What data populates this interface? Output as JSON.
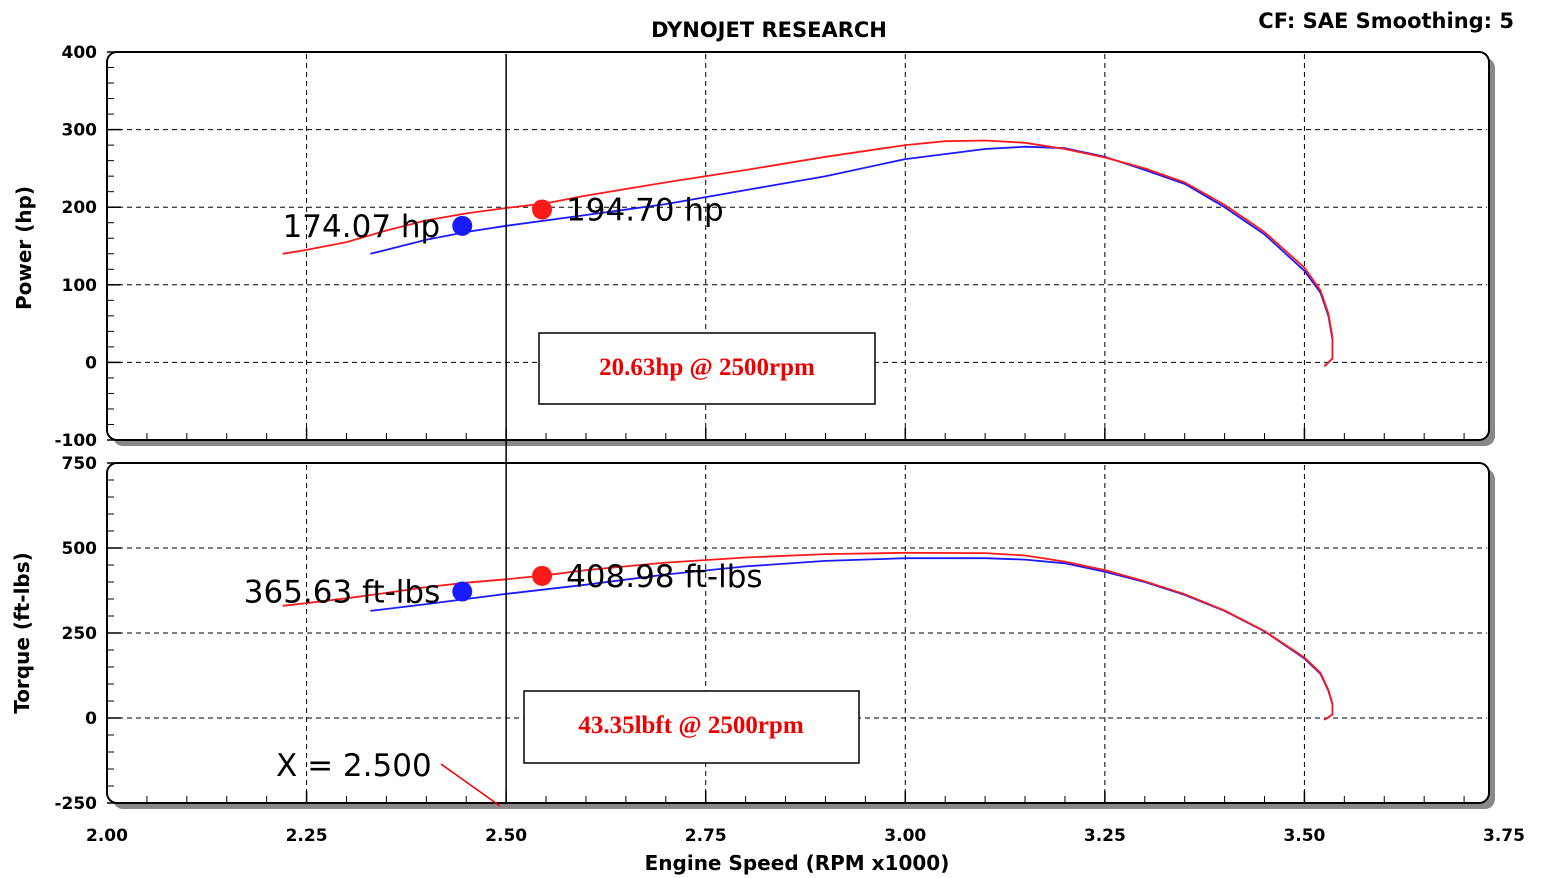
{
  "header": {
    "title": "DYNOJET RESEARCH",
    "settings": "CF: SAE  Smoothing: 5"
  },
  "colors": {
    "run1": "#1a1aff",
    "run2": "#ff1a1a",
    "note_text": "#ee0000"
  },
  "chart_data": [
    {
      "type": "line",
      "ylabel": "Power (hp)",
      "xlabel": "",
      "xlim": [
        2.0,
        3.75
      ],
      "ylim": [
        -100,
        400
      ],
      "x_ticks": [
        "2.00",
        "2.25",
        "2.50",
        "2.75",
        "3.00",
        "3.25",
        "3.50",
        "3.75"
      ],
      "y_ticks": [
        "400",
        "300",
        "200",
        "100",
        "0",
        "-100"
      ],
      "grid": true,
      "series": [
        {
          "color": "#1a1aff",
          "points": [
            [
              2.33,
              140
            ],
            [
              2.4,
              158
            ],
            [
              2.45,
              168
            ],
            [
              2.5,
              176
            ],
            [
              2.6,
              190
            ],
            [
              2.7,
              204
            ],
            [
              2.8,
              222
            ],
            [
              2.9,
              240
            ],
            [
              3.0,
              262
            ],
            [
              3.1,
              275
            ],
            [
              3.15,
              278
            ],
            [
              3.2,
              276
            ],
            [
              3.25,
              265
            ],
            [
              3.3,
              248
            ],
            [
              3.35,
              230
            ],
            [
              3.4,
              200
            ],
            [
              3.45,
              165
            ],
            [
              3.5,
              118
            ],
            [
              3.52,
              90
            ],
            [
              3.53,
              60
            ],
            [
              3.535,
              30
            ],
            [
              3.535,
              5
            ],
            [
              3.525,
              -5
            ]
          ]
        },
        {
          "color": "#ff1a1a",
          "points": [
            [
              2.22,
              140
            ],
            [
              2.25,
              145
            ],
            [
              2.3,
              155
            ],
            [
              2.35,
              170
            ],
            [
              2.4,
              183
            ],
            [
              2.45,
              192
            ],
            [
              2.5,
              199
            ],
            [
              2.55,
              205
            ],
            [
              2.6,
              215
            ],
            [
              2.7,
              232
            ],
            [
              2.8,
              248
            ],
            [
              2.9,
              265
            ],
            [
              3.0,
              280
            ],
            [
              3.05,
              285
            ],
            [
              3.1,
              286
            ],
            [
              3.15,
              283
            ],
            [
              3.2,
              275
            ],
            [
              3.25,
              264
            ],
            [
              3.3,
              250
            ],
            [
              3.35,
              232
            ],
            [
              3.4,
              203
            ],
            [
              3.45,
              168
            ],
            [
              3.5,
              122
            ],
            [
              3.52,
              93
            ],
            [
              3.53,
              63
            ],
            [
              3.535,
              33
            ],
            [
              3.535,
              5
            ],
            [
              3.525,
              -5
            ]
          ]
        }
      ],
      "markers": [
        {
          "x": 2.445,
          "y": 176,
          "color": "#1a1aff",
          "label": "174.07 hp"
        },
        {
          "x": 2.545,
          "y": 197,
          "color": "#ff1a1a",
          "label": "194.70 hp"
        }
      ],
      "annotation": "20.63hp @ 2500rpm"
    },
    {
      "type": "line",
      "ylabel": "Torque (ft-lbs)",
      "xlabel": "Engine Speed (RPM x1000)",
      "xlim": [
        2.0,
        3.75
      ],
      "ylim": [
        -250,
        750
      ],
      "x_ticks": [
        "2.00",
        "2.25",
        "2.50",
        "2.75",
        "3.00",
        "3.25",
        "3.50",
        "3.75"
      ],
      "y_ticks": [
        "750",
        "500",
        "250",
        "0",
        "-250"
      ],
      "grid": true,
      "series": [
        {
          "color": "#1a1aff",
          "points": [
            [
              2.33,
              315
            ],
            [
              2.4,
              335
            ],
            [
              2.45,
              350
            ],
            [
              2.5,
              365
            ],
            [
              2.6,
              392
            ],
            [
              2.7,
              422
            ],
            [
              2.8,
              446
            ],
            [
              2.9,
              462
            ],
            [
              3.0,
              470
            ],
            [
              3.1,
              470
            ],
            [
              3.15,
              466
            ],
            [
              3.2,
              455
            ],
            [
              3.25,
              430
            ],
            [
              3.3,
              400
            ],
            [
              3.35,
              362
            ],
            [
              3.4,
              315
            ],
            [
              3.45,
              255
            ],
            [
              3.5,
              175
            ],
            [
              3.52,
              130
            ],
            [
              3.53,
              80
            ],
            [
              3.535,
              40
            ],
            [
              3.535,
              10
            ],
            [
              3.525,
              -5
            ]
          ]
        },
        {
          "color": "#ff1a1a",
          "points": [
            [
              2.22,
              330
            ],
            [
              2.25,
              338
            ],
            [
              2.3,
              352
            ],
            [
              2.35,
              368
            ],
            [
              2.4,
              385
            ],
            [
              2.45,
              398
            ],
            [
              2.5,
              408
            ],
            [
              2.55,
              420
            ],
            [
              2.6,
              435
            ],
            [
              2.7,
              457
            ],
            [
              2.8,
              472
            ],
            [
              2.9,
              482
            ],
            [
              3.0,
              486
            ],
            [
              3.1,
              485
            ],
            [
              3.15,
              478
            ],
            [
              3.2,
              460
            ],
            [
              3.25,
              435
            ],
            [
              3.3,
              402
            ],
            [
              3.35,
              364
            ],
            [
              3.4,
              316
            ],
            [
              3.45,
              256
            ],
            [
              3.5,
              178
            ],
            [
              3.52,
              133
            ],
            [
              3.53,
              83
            ],
            [
              3.535,
              43
            ],
            [
              3.535,
              10
            ],
            [
              3.525,
              -5
            ]
          ]
        }
      ],
      "markers": [
        {
          "x": 2.445,
          "y": 372,
          "color": "#1a1aff",
          "label": "365.63 ft-lbs"
        },
        {
          "x": 2.545,
          "y": 418,
          "color": "#ff1a1a",
          "label": "408.98 ft-lbs"
        }
      ],
      "annotation": "43.35lbft @ 2500rpm",
      "cursor_label": "X = 2.500"
    }
  ],
  "cursor_x": 2.5
}
